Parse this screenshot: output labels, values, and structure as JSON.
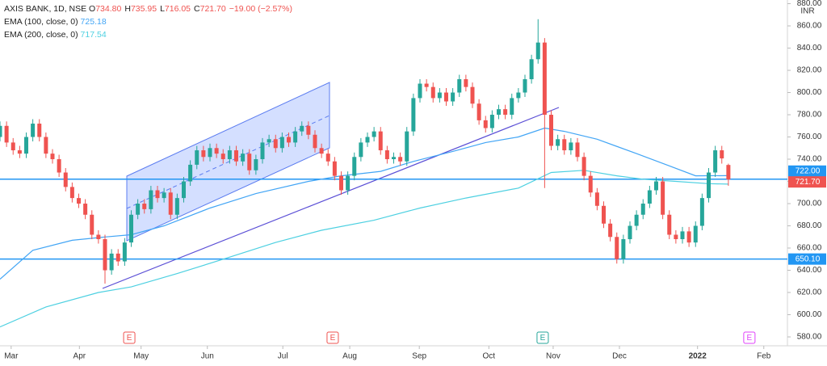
{
  "chart_data": {
    "type": "candlestick",
    "legend": {
      "symbol": "AXIS BANK, 1D, NSE",
      "ohlc": [
        {
          "key": "O",
          "value": "734.80"
        },
        {
          "key": "H",
          "value": "735.95"
        },
        {
          "key": "L",
          "value": "716.05"
        },
        {
          "key": "C",
          "value": "721.70"
        }
      ],
      "change": "−19.00 (−2.57%)"
    },
    "up_color": "#26a69a",
    "down_color": "#ef5350",
    "x": [
      0,
      1,
      2,
      3,
      4,
      5,
      6,
      7,
      8,
      9,
      10,
      11,
      12,
      13,
      14,
      15,
      16,
      17,
      18,
      19,
      20,
      21,
      22,
      23,
      24,
      25,
      26,
      27,
      28,
      29,
      30,
      31,
      32,
      33,
      34,
      35,
      36,
      37,
      38,
      39,
      40,
      41,
      42,
      43,
      44,
      45,
      46,
      47,
      48,
      49,
      50,
      51,
      52,
      53,
      54,
      55,
      56,
      57,
      58,
      59,
      60,
      61,
      62,
      63,
      64,
      65,
      66,
      67,
      68,
      69,
      70,
      71,
      72,
      73,
      74,
      75,
      76,
      77,
      78,
      79,
      80,
      81,
      82,
      83,
      84,
      85,
      86,
      87,
      88,
      89,
      90,
      91,
      92,
      93,
      94,
      95,
      96,
      97,
      98,
      99,
      100,
      101,
      102,
      103,
      104,
      105,
      106,
      107,
      108,
      109,
      110,
      111
    ],
    "open": [
      760,
      770,
      755,
      748,
      745,
      760,
      772,
      760,
      745,
      740,
      728,
      715,
      705,
      700,
      690,
      672,
      668,
      640,
      655,
      648,
      665,
      690,
      700,
      695,
      712,
      705,
      710,
      690,
      705,
      720,
      735,
      748,
      742,
      750,
      745,
      740,
      748,
      738,
      745,
      730,
      740,
      755,
      758,
      750,
      760,
      755,
      765,
      770,
      762,
      750,
      745,
      738,
      725,
      712,
      725,
      742,
      755,
      760,
      765,
      748,
      740,
      742,
      738,
      765,
      795,
      808,
      805,
      795,
      800,
      792,
      800,
      812,
      805,
      790,
      775,
      768,
      780,
      785,
      780,
      795,
      800,
      812,
      830,
      845,
      780,
      752,
      758,
      748,
      755,
      742,
      725,
      710,
      698,
      682,
      670,
      650,
      668,
      680,
      690,
      700,
      712,
      720,
      690,
      672,
      668,
      675,
      665,
      680,
      705,
      728,
      748,
      734.8
    ],
    "high": [
      774,
      774,
      759,
      752,
      764,
      776,
      776,
      764,
      749,
      744,
      732,
      719,
      709,
      704,
      694,
      676,
      672,
      659,
      659,
      669,
      694,
      704,
      704,
      716,
      716,
      714,
      714,
      709,
      724,
      739,
      752,
      752,
      754,
      754,
      749,
      752,
      752,
      749,
      749,
      744,
      759,
      762,
      762,
      764,
      764,
      769,
      774,
      774,
      766,
      754,
      749,
      742,
      729,
      729,
      746,
      759,
      764,
      769,
      769,
      752,
      746,
      746,
      769,
      799,
      812,
      812,
      809,
      804,
      804,
      804,
      816,
      816,
      809,
      794,
      779,
      784,
      789,
      789,
      799,
      804,
      816,
      834,
      866,
      849,
      784,
      762,
      762,
      759,
      759,
      746,
      729,
      714,
      702,
      686,
      674,
      672,
      684,
      694,
      704,
      716,
      724,
      724,
      694,
      676,
      679,
      679,
      684,
      709,
      732,
      752,
      752,
      735.95
    ],
    "low": [
      756,
      751,
      744,
      741,
      741,
      756,
      756,
      741,
      736,
      724,
      711,
      701,
      696,
      686,
      668,
      664,
      628,
      636,
      644,
      644,
      661,
      686,
      691,
      691,
      701,
      701,
      686,
      686,
      701,
      716,
      731,
      738,
      738,
      741,
      736,
      736,
      734,
      734,
      726,
      726,
      736,
      751,
      746,
      746,
      751,
      751,
      761,
      758,
      746,
      741,
      734,
      721,
      708,
      708,
      721,
      738,
      751,
      756,
      744,
      736,
      736,
      734,
      734,
      761,
      791,
      801,
      791,
      791,
      788,
      788,
      796,
      801,
      786,
      771,
      764,
      764,
      776,
      776,
      776,
      791,
      796,
      808,
      826,
      714,
      748,
      748,
      744,
      744,
      738,
      721,
      706,
      694,
      678,
      666,
      646,
      646,
      664,
      676,
      686,
      696,
      708,
      686,
      668,
      664,
      664,
      661,
      661,
      676,
      701,
      724,
      736,
      716.05
    ],
    "close": [
      770,
      755,
      748,
      745,
      760,
      772,
      760,
      745,
      740,
      728,
      715,
      705,
      700,
      690,
      672,
      668,
      640,
      655,
      648,
      665,
      690,
      700,
      695,
      712,
      705,
      710,
      690,
      705,
      720,
      735,
      748,
      742,
      750,
      745,
      740,
      748,
      738,
      745,
      730,
      740,
      755,
      758,
      750,
      760,
      755,
      765,
      770,
      762,
      750,
      745,
      738,
      725,
      712,
      725,
      742,
      755,
      760,
      765,
      748,
      740,
      742,
      738,
      765,
      795,
      808,
      805,
      795,
      800,
      792,
      800,
      812,
      805,
      790,
      775,
      768,
      780,
      785,
      780,
      795,
      800,
      812,
      830,
      845,
      780,
      752,
      758,
      748,
      755,
      742,
      725,
      710,
      698,
      682,
      670,
      650,
      668,
      680,
      690,
      700,
      712,
      720,
      690,
      672,
      668,
      675,
      665,
      680,
      705,
      728,
      748,
      740.7,
      721.7
    ],
    "overlays": [
      {
        "name": "EMA (100, close, 0)",
        "color": "#42a5f5",
        "x": [
          0,
          5,
          11,
          16,
          20,
          25,
          32,
          39,
          47,
          52,
          58,
          63,
          69,
          74,
          79,
          83,
          86,
          91,
          97,
          102,
          106,
          111
        ],
        "values": [
          632,
          658,
          667,
          670,
          672,
          680,
          696,
          709,
          720,
          725,
          729,
          738,
          747,
          755,
          760,
          768,
          765,
          758,
          745,
          734,
          725,
          725.18
        ]
      },
      {
        "name": "EMA (200, close, 0)",
        "color": "#4dd0e1",
        "x": [
          0,
          7,
          15,
          20,
          27,
          34,
          42,
          49,
          57,
          64,
          71,
          79,
          84,
          89,
          94,
          98,
          103,
          108,
          111
        ],
        "values": [
          589,
          607,
          620,
          625,
          637,
          650,
          665,
          676,
          685,
          696,
          705,
          714,
          728,
          730,
          725,
          722,
          720,
          718,
          717.54
        ]
      }
    ],
    "price_lines": [
      {
        "value": 722,
        "label": "722.00",
        "color": "#2196f3"
      },
      {
        "value": 650.1,
        "label": "650.10",
        "color": "#2196f3"
      }
    ],
    "last_price": {
      "value": 721.7,
      "label": "721.70"
    },
    "earnings": [
      {
        "x": 19.7,
        "label": "E",
        "color": "#ef5350"
      },
      {
        "x": 50.7,
        "label": "E",
        "color": "#ef5350"
      },
      {
        "x": 82.7,
        "label": "E",
        "color": "#26a69a"
      },
      {
        "x": 114.2,
        "label": "E",
        "color": "#e040fb"
      }
    ],
    "currency": "INR",
    "xlim": [
      0,
      120
    ],
    "ylim": [
      572,
      883.3
    ],
    "xticks": [
      {
        "value": 1.7,
        "label": "Mar"
      },
      {
        "value": 12.1,
        "label": "Apr"
      },
      {
        "value": 21.5,
        "label": "May"
      },
      {
        "value": 31.6,
        "label": "Jun"
      },
      {
        "value": 43.1,
        "label": "Jul"
      },
      {
        "value": 53.3,
        "label": "Aug"
      },
      {
        "value": 63.9,
        "label": "Sep"
      },
      {
        "value": 74.5,
        "label": "Oct"
      },
      {
        "value": 84.3,
        "label": "Nov"
      },
      {
        "value": 94.4,
        "label": "Dec"
      },
      {
        "value": 106.3,
        "label": "2022"
      },
      {
        "value": 116.4,
        "label": "Feb"
      }
    ],
    "yticks": [
      {
        "value": 580,
        "label": "580.00"
      },
      {
        "value": 600,
        "label": "600.00"
      },
      {
        "value": 620,
        "label": "620.00"
      },
      {
        "value": 640,
        "label": "640.00"
      },
      {
        "value": 660,
        "label": "660.00"
      },
      {
        "value": 680,
        "label": "680.00"
      },
      {
        "value": 700,
        "label": "700.00"
      },
      {
        "value": 720,
        "label": "720.00"
      },
      {
        "value": 740,
        "label": "740.00"
      },
      {
        "value": 760,
        "label": "760.00"
      },
      {
        "value": 780,
        "label": "780.00"
      },
      {
        "value": 800,
        "label": "800.00"
      },
      {
        "value": 820,
        "label": "820.00"
      },
      {
        "value": 840,
        "label": "840.00"
      },
      {
        "value": 860,
        "label": "860.00"
      },
      {
        "value": 880,
        "label": "880.00"
      }
    ],
    "grid": false
  }
}
